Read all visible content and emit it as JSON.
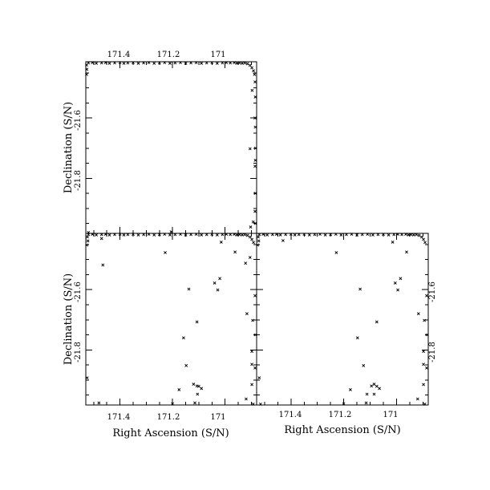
{
  "chart_data": {
    "type": "scatter",
    "marker": "x",
    "color": "#000000",
    "grid": false,
    "legend": "none",
    "xlabel": "Right Ascension (S/N)",
    "ylabel": "Declination (S/N)",
    "xlim": [
      171.53,
      170.88
    ],
    "ylim": [
      -21.983,
      -21.413
    ],
    "x_ticks": [
      171.4,
      171.2,
      171
    ],
    "x_tick_labels": [
      "171.4",
      "171.2",
      "171"
    ],
    "y_ticks": [
      -21.6,
      -21.8
    ],
    "y_tick_labels": [
      "-21.6",
      "-21.8"
    ],
    "panels": [
      {
        "id": "top-left",
        "points": [
          [
            171.52,
            -21.417
          ],
          [
            171.505,
            -21.416
          ],
          [
            171.49,
            -21.418
          ],
          [
            171.47,
            -21.417
          ],
          [
            171.455,
            -21.416
          ],
          [
            171.44,
            -21.418
          ],
          [
            171.42,
            -21.417
          ],
          [
            171.4,
            -21.416
          ],
          [
            171.385,
            -21.418
          ],
          [
            171.37,
            -21.417
          ],
          [
            171.35,
            -21.416
          ],
          [
            171.33,
            -21.418
          ],
          [
            171.31,
            -21.417
          ],
          [
            171.29,
            -21.416
          ],
          [
            171.27,
            -21.418
          ],
          [
            171.25,
            -21.417
          ],
          [
            171.23,
            -21.416
          ],
          [
            171.21,
            -21.418
          ],
          [
            171.19,
            -21.417
          ],
          [
            171.17,
            -21.416
          ],
          [
            171.15,
            -21.418
          ],
          [
            171.13,
            -21.417
          ],
          [
            171.11,
            -21.416
          ],
          [
            171.09,
            -21.418
          ],
          [
            171.07,
            -21.417
          ],
          [
            171.05,
            -21.416
          ],
          [
            171.03,
            -21.418
          ],
          [
            171.01,
            -21.417
          ],
          [
            170.995,
            -21.416
          ],
          [
            170.98,
            -21.417
          ],
          [
            170.965,
            -21.416
          ],
          [
            170.955,
            -21.418
          ],
          [
            170.945,
            -21.417
          ],
          [
            170.935,
            -21.418
          ],
          [
            170.925,
            -21.417
          ],
          [
            170.915,
            -21.42
          ],
          [
            170.905,
            -21.425
          ],
          [
            170.898,
            -21.433
          ],
          [
            170.892,
            -21.443
          ],
          [
            170.888,
            -21.455
          ],
          [
            171.527,
            -21.424
          ],
          [
            171.526,
            -21.438
          ],
          [
            171.527,
            -21.455
          ],
          [
            170.886,
            -21.48
          ],
          [
            170.885,
            -21.53
          ],
          [
            170.886,
            -21.6
          ],
          [
            170.885,
            -21.63
          ],
          [
            170.884,
            -21.7
          ],
          [
            170.885,
            -21.74
          ],
          [
            170.886,
            -21.76
          ],
          [
            170.885,
            -21.85
          ],
          [
            170.886,
            -21.91
          ],
          [
            170.885,
            -21.95
          ],
          [
            170.897,
            -21.508
          ],
          [
            170.905,
            -21.702
          ],
          [
            170.903,
            -21.962
          ],
          [
            170.893,
            -21.945
          ]
        ]
      },
      {
        "id": "bottom-left",
        "points": [
          [
            171.52,
            -21.417
          ],
          [
            171.505,
            -21.416
          ],
          [
            171.49,
            -21.418
          ],
          [
            171.47,
            -21.417
          ],
          [
            171.455,
            -21.416
          ],
          [
            171.44,
            -21.418
          ],
          [
            171.42,
            -21.417
          ],
          [
            171.4,
            -21.416
          ],
          [
            171.385,
            -21.418
          ],
          [
            171.37,
            -21.417
          ],
          [
            171.35,
            -21.416
          ],
          [
            171.33,
            -21.418
          ],
          [
            171.31,
            -21.417
          ],
          [
            171.29,
            -21.416
          ],
          [
            171.27,
            -21.418
          ],
          [
            171.25,
            -21.417
          ],
          [
            171.23,
            -21.416
          ],
          [
            171.21,
            -21.418
          ],
          [
            171.19,
            -21.417
          ],
          [
            171.17,
            -21.416
          ],
          [
            171.15,
            -21.418
          ],
          [
            171.13,
            -21.417
          ],
          [
            171.11,
            -21.416
          ],
          [
            171.09,
            -21.418
          ],
          [
            171.07,
            -21.417
          ],
          [
            171.05,
            -21.416
          ],
          [
            171.03,
            -21.418
          ],
          [
            171.01,
            -21.417
          ],
          [
            170.995,
            -21.416
          ],
          [
            170.98,
            -21.417
          ],
          [
            170.965,
            -21.416
          ],
          [
            170.955,
            -21.418
          ],
          [
            170.945,
            -21.417
          ],
          [
            170.935,
            -21.418
          ],
          [
            170.925,
            -21.417
          ],
          [
            170.915,
            -21.42
          ],
          [
            170.905,
            -21.425
          ],
          [
            170.898,
            -21.433
          ],
          [
            170.892,
            -21.443
          ],
          [
            171.524,
            -21.425
          ],
          [
            171.522,
            -21.438
          ],
          [
            171.526,
            -21.452
          ],
          [
            171.52,
            -21.41
          ],
          [
            171.205,
            -21.408
          ],
          [
            171.47,
            -21.43
          ],
          [
            171.465,
            -21.518
          ],
          [
            171.228,
            -21.477
          ],
          [
            171.138,
            -21.598
          ],
          [
            171.015,
            -21.442
          ],
          [
            170.962,
            -21.475
          ],
          [
            171.04,
            -21.578
          ],
          [
            171.02,
            -21.563
          ],
          [
            171.028,
            -21.601
          ],
          [
            171.107,
            -21.707
          ],
          [
            171.158,
            -21.76
          ],
          [
            171.148,
            -21.852
          ],
          [
            171.175,
            -21.932
          ],
          [
            171.107,
            -21.92
          ],
          [
            171.12,
            -21.914
          ],
          [
            171.1,
            -21.921
          ],
          [
            171.09,
            -21.928
          ],
          [
            171.105,
            -21.947
          ],
          [
            170.905,
            -21.493
          ],
          [
            170.922,
            -21.512
          ],
          [
            170.898,
            -21.805
          ],
          [
            170.898,
            -21.848
          ],
          [
            170.895,
            -21.702
          ],
          [
            170.917,
            -21.68
          ],
          [
            170.898,
            -21.915
          ],
          [
            170.92,
            -21.963
          ],
          [
            170.893,
            -21.98
          ],
          [
            171.525,
            -21.893
          ],
          [
            171.48,
            -21.976
          ],
          [
            171.2,
            -21.979
          ],
          [
            171.115,
            -21.976
          ],
          [
            170.886,
            -21.62
          ],
          [
            170.885,
            -21.75
          ],
          [
            170.886,
            -21.86
          ]
        ]
      },
      {
        "id": "bottom-right",
        "points": [
          [
            171.52,
            -21.417
          ],
          [
            171.505,
            -21.416
          ],
          [
            171.49,
            -21.418
          ],
          [
            171.47,
            -21.417
          ],
          [
            171.455,
            -21.416
          ],
          [
            171.44,
            -21.418
          ],
          [
            171.42,
            -21.417
          ],
          [
            171.4,
            -21.416
          ],
          [
            171.385,
            -21.418
          ],
          [
            171.37,
            -21.417
          ],
          [
            171.35,
            -21.416
          ],
          [
            171.33,
            -21.418
          ],
          [
            171.31,
            -21.417
          ],
          [
            171.29,
            -21.416
          ],
          [
            171.27,
            -21.418
          ],
          [
            171.25,
            -21.417
          ],
          [
            171.23,
            -21.416
          ],
          [
            171.21,
            -21.418
          ],
          [
            171.19,
            -21.417
          ],
          [
            171.17,
            -21.416
          ],
          [
            171.15,
            -21.418
          ],
          [
            171.13,
            -21.417
          ],
          [
            171.11,
            -21.416
          ],
          [
            171.09,
            -21.418
          ],
          [
            171.07,
            -21.417
          ],
          [
            171.05,
            -21.416
          ],
          [
            171.03,
            -21.418
          ],
          [
            171.01,
            -21.417
          ],
          [
            170.995,
            -21.416
          ],
          [
            170.98,
            -21.417
          ],
          [
            170.965,
            -21.416
          ],
          [
            170.955,
            -21.418
          ],
          [
            170.945,
            -21.417
          ],
          [
            170.935,
            -21.418
          ],
          [
            170.925,
            -21.417
          ],
          [
            170.915,
            -21.42
          ],
          [
            170.905,
            -21.425
          ],
          [
            170.898,
            -21.433
          ],
          [
            170.892,
            -21.443
          ],
          [
            171.524,
            -21.425
          ],
          [
            171.522,
            -21.438
          ],
          [
            171.526,
            -21.452
          ],
          [
            171.43,
            -21.437
          ],
          [
            171.228,
            -21.477
          ],
          [
            171.015,
            -21.442
          ],
          [
            170.962,
            -21.475
          ],
          [
            171.005,
            -21.578
          ],
          [
            170.985,
            -21.563
          ],
          [
            170.995,
            -21.601
          ],
          [
            171.138,
            -21.598
          ],
          [
            171.075,
            -21.707
          ],
          [
            171.125,
            -21.852
          ],
          [
            171.148,
            -21.76
          ],
          [
            171.085,
            -21.914
          ],
          [
            171.095,
            -21.92
          ],
          [
            171.075,
            -21.921
          ],
          [
            171.065,
            -21.928
          ],
          [
            171.085,
            -21.947
          ],
          [
            171.175,
            -21.932
          ],
          [
            171.112,
            -21.947
          ],
          [
            170.898,
            -21.805
          ],
          [
            170.898,
            -21.848
          ],
          [
            170.895,
            -21.702
          ],
          [
            170.917,
            -21.68
          ],
          [
            170.898,
            -21.915
          ],
          [
            170.92,
            -21.963
          ],
          [
            170.893,
            -21.98
          ],
          [
            171.52,
            -21.893
          ],
          [
            171.515,
            -21.98
          ],
          [
            171.2,
            -21.979
          ],
          [
            171.115,
            -21.976
          ],
          [
            170.886,
            -21.62
          ],
          [
            170.885,
            -21.75
          ],
          [
            170.886,
            -21.86
          ]
        ]
      }
    ]
  }
}
